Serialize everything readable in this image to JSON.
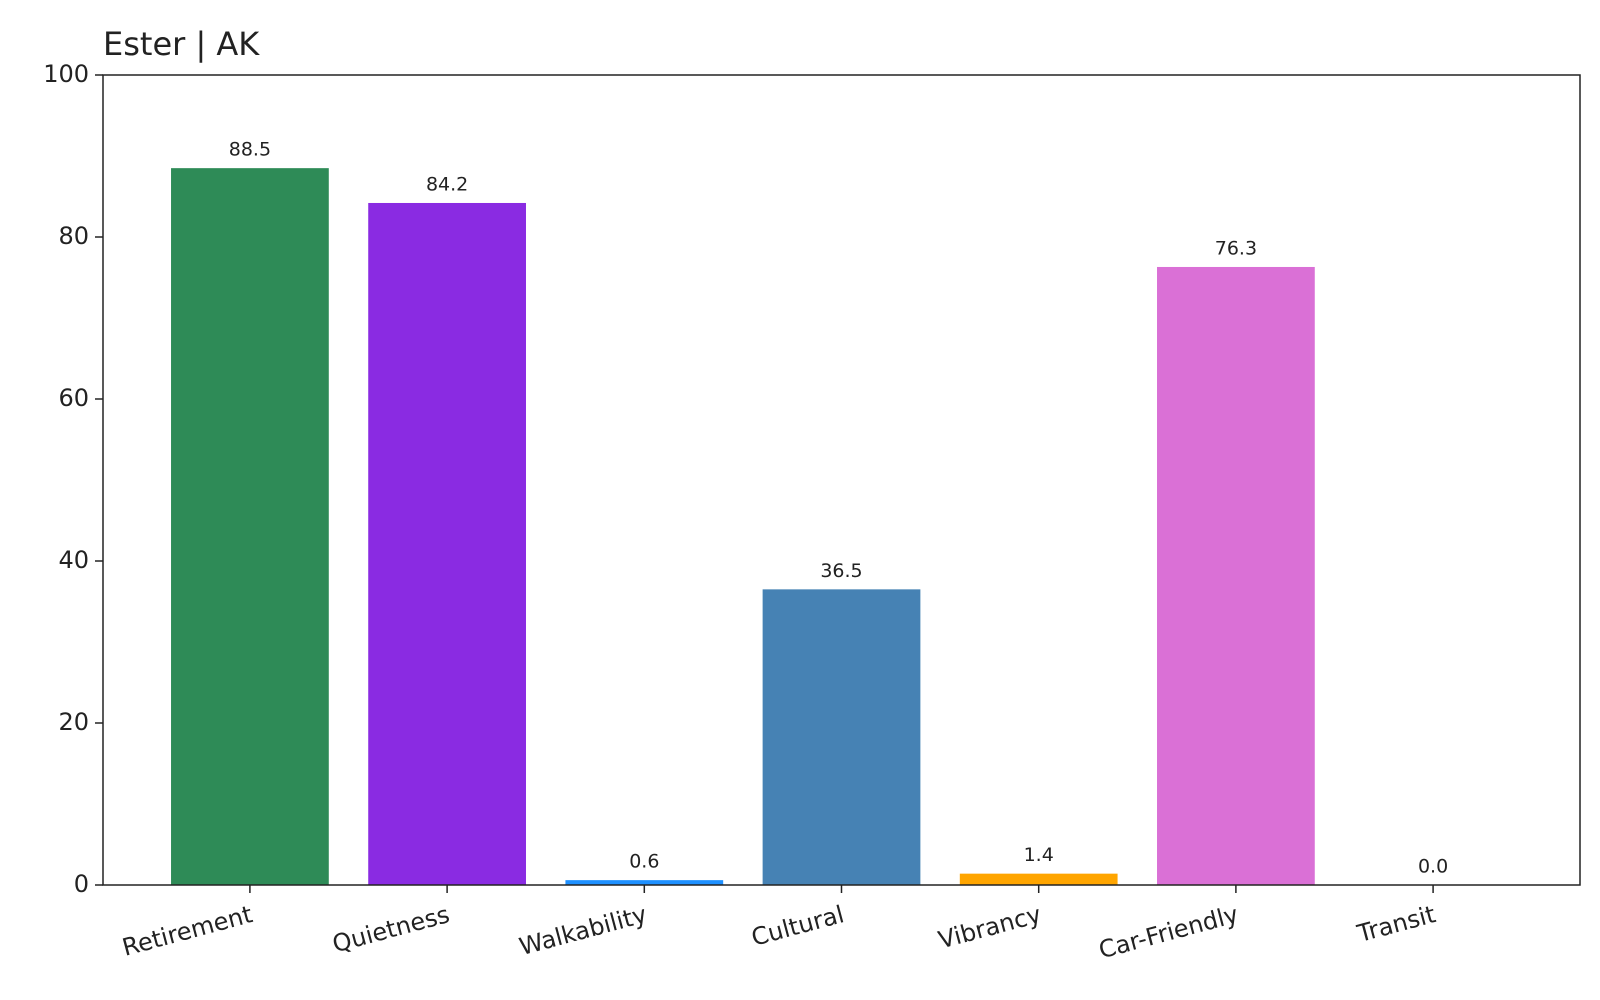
{
  "chart_data": {
    "type": "bar",
    "title": "Ester | AK",
    "categories": [
      "Retirement",
      "Quietness",
      "Walkability",
      "Cultural",
      "Vibrancy",
      "Car-Friendly",
      "Transit"
    ],
    "values": [
      88.5,
      84.2,
      0.6,
      36.5,
      1.4,
      76.3,
      0
    ],
    "value_labels": [
      "88.5",
      "84.2",
      "0.6",
      "36.5",
      "1.4",
      "76.3",
      "0.0"
    ],
    "colors": [
      "#2e8b57",
      "#8a2be2",
      "#1e90ff",
      "#4682b4",
      "#ffa500",
      "#da70d6",
      "#20b2aa"
    ],
    "ylim": [
      0,
      100
    ],
    "yticks": [
      0,
      20,
      40,
      60,
      80,
      100
    ],
    "grid": false
  }
}
